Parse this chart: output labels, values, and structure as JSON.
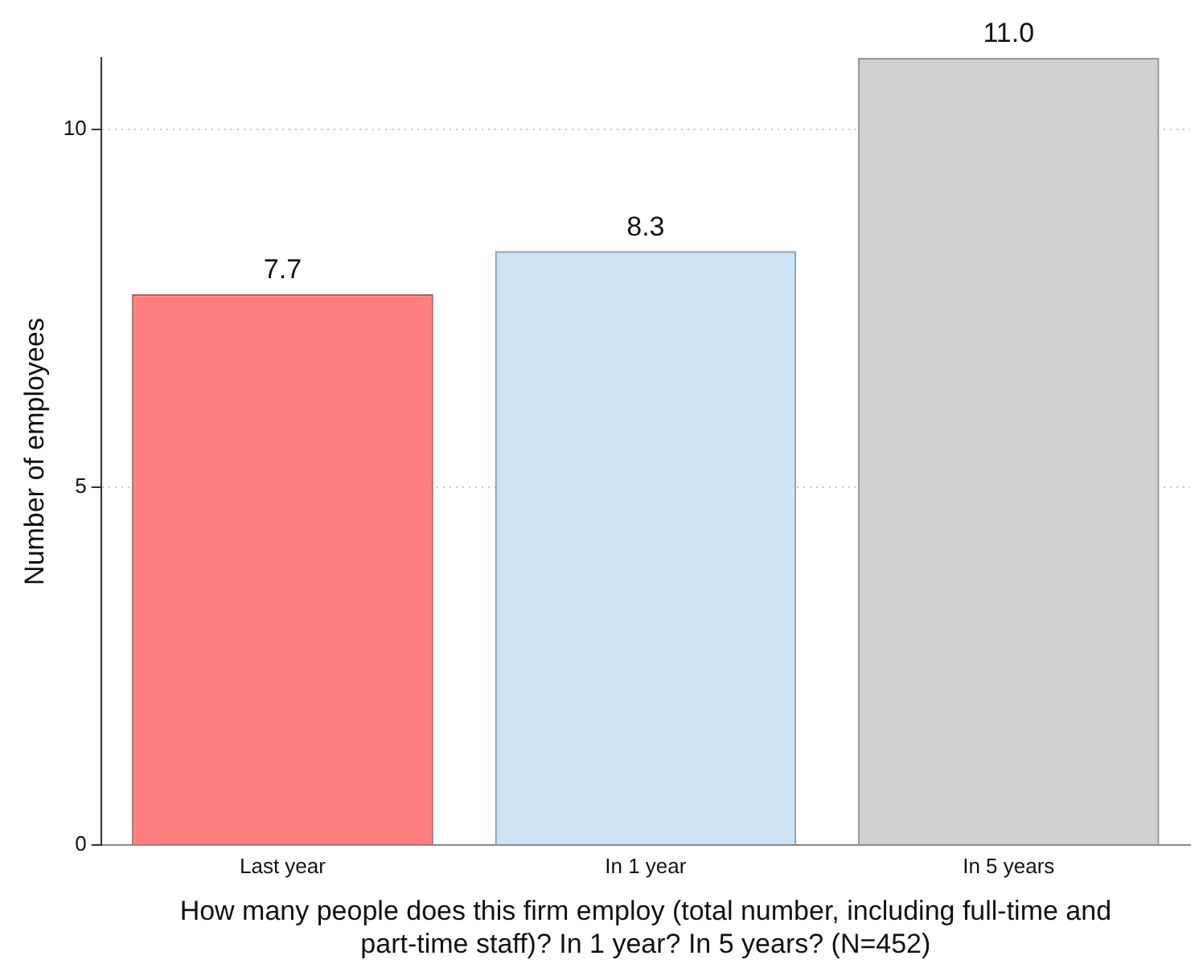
{
  "chart_data": {
    "type": "bar",
    "ylabel": "Number of employees",
    "xlabel": "How many people does this firm employ (total number, including full-time and part-time staff)? In 1 year? In 5 years? (N=452)",
    "categories": [
      "Last year",
      "In 1 year",
      "In 5 years"
    ],
    "values": [
      7.7,
      8.3,
      11.0
    ],
    "colors": [
      "#ff7f7f",
      "#cde4f4",
      "#d0d0d0"
    ],
    "value_labels": [
      "7.7",
      "8.3",
      "11.0"
    ],
    "ylim": [
      0,
      11
    ],
    "yticks": [
      0,
      5,
      10
    ],
    "grid": "y",
    "legend": false
  }
}
